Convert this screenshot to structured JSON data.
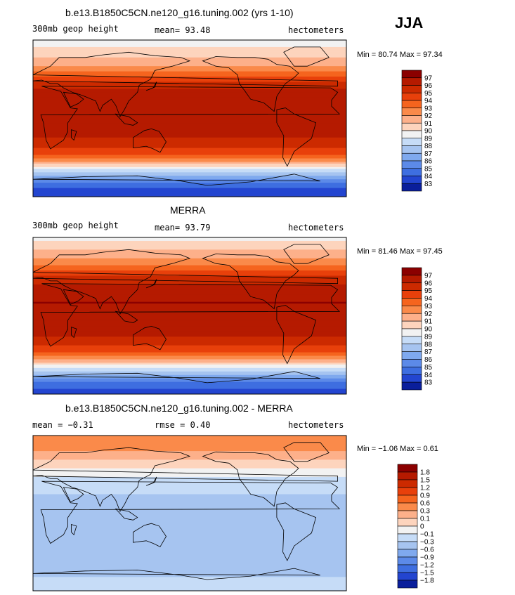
{
  "season": "JJA",
  "units": "hectometers",
  "land_outline_color": "#000000",
  "panels": [
    {
      "id": "model",
      "title": "b.e13.B1850C5CN.ne120_g16.tuning.002 (yrs 1-10)",
      "field_label": "300mb geop height",
      "stat1": "mean=  93.48",
      "stat2": "",
      "units": "hectometers",
      "minmax": "Min =  80.74 Max =  97.34"
    },
    {
      "id": "obs",
      "title": "MERRA",
      "field_label": "300mb geop height",
      "stat1": "mean=  93.79",
      "stat2": "",
      "units": "hectometers",
      "minmax": "Min =  81.46 Max =  97.45"
    },
    {
      "id": "diff",
      "title": "b.e13.B1850C5CN.ne120_g16.tuning.002 - MERRA",
      "field_label": "mean =  −0.31",
      "stat1": "rmse =   0.40",
      "stat2": "",
      "units": "hectometers",
      "minmax": "Min = −1.06 Max =   0.61"
    }
  ],
  "chart_data": [
    {
      "type": "heatmap",
      "title": "b.e13.B1850C5CN.ne120_g16.tuning.002 (yrs 1-10)",
      "variable": "300mb geop height",
      "units": "hectometers",
      "mean": 93.48,
      "min": 80.74,
      "max": 97.34,
      "lat_range": [
        -90,
        90
      ],
      "lon_range": [
        0,
        360
      ],
      "colorbar_levels": [
        "97",
        "96",
        "95",
        "94",
        "93",
        "92",
        "91",
        "90",
        "89",
        "88",
        "87",
        "86",
        "85",
        "84",
        "83"
      ],
      "colorbar_colors": [
        "#8b0000",
        "#b51a00",
        "#cc2a00",
        "#e8400b",
        "#f5641e",
        "#fa8a4a",
        "#fdb08a",
        "#fdd4bd",
        "#f2f2f2",
        "#c6dcf7",
        "#a6c4f0",
        "#7fa9ee",
        "#5c8ae8",
        "#3e6ee0",
        "#2345d0",
        "#0a1e9b"
      ],
      "zonal_profile": {
        "lat": [
          90,
          75,
          60,
          45,
          30,
          15,
          0,
          -15,
          -30,
          -45,
          -60,
          -75,
          -90
        ],
        "value": [
          89.5,
          90.5,
          92.0,
          94.5,
          96.5,
          96.8,
          96.8,
          96.5,
          95.5,
          93.5,
          88.5,
          84.5,
          83.0
        ]
      }
    },
    {
      "type": "heatmap",
      "title": "MERRA",
      "variable": "300mb geop height",
      "units": "hectometers",
      "mean": 93.79,
      "min": 81.46,
      "max": 97.45,
      "lat_range": [
        -90,
        90
      ],
      "lon_range": [
        0,
        360
      ],
      "colorbar_levels": [
        "97",
        "96",
        "95",
        "94",
        "93",
        "92",
        "91",
        "90",
        "89",
        "88",
        "87",
        "86",
        "85",
        "84",
        "83"
      ],
      "colorbar_colors": [
        "#8b0000",
        "#b51a00",
        "#cc2a00",
        "#e8400b",
        "#f5641e",
        "#fa8a4a",
        "#fdb08a",
        "#fdd4bd",
        "#f2f2f2",
        "#c6dcf7",
        "#a6c4f0",
        "#7fa9ee",
        "#5c8ae8",
        "#3e6ee0",
        "#2345d0",
        "#0a1e9b"
      ],
      "zonal_profile": {
        "lat": [
          90,
          75,
          60,
          45,
          30,
          15,
          0,
          -15,
          -30,
          -45,
          -60,
          -75,
          -90
        ],
        "value": [
          89.5,
          91.0,
          92.5,
          95.0,
          96.8,
          97.0,
          96.9,
          96.6,
          95.6,
          93.5,
          89.0,
          85.0,
          83.2
        ]
      }
    },
    {
      "type": "heatmap",
      "title": "b.e13.B1850C5CN.ne120_g16.tuning.002 - MERRA",
      "variable": "difference",
      "units": "hectometers",
      "mean": -0.31,
      "rmse": 0.4,
      "min": -1.06,
      "max": 0.61,
      "lat_range": [
        -90,
        90
      ],
      "lon_range": [
        0,
        360
      ],
      "colorbar_levels": [
        "1.8",
        "1.5",
        "1.2",
        "0.9",
        "0.6",
        "0.3",
        "0.1",
        "0",
        "−0.1",
        "−0.3",
        "−0.6",
        "−0.9",
        "−1.2",
        "−1.5",
        "−1.8"
      ],
      "colorbar_colors": [
        "#8b0000",
        "#b51a00",
        "#cc2a00",
        "#e8400b",
        "#f5641e",
        "#fa8a4a",
        "#fdb08a",
        "#fdd4bd",
        "#f2f2f2",
        "#c6dcf7",
        "#a6c4f0",
        "#7fa9ee",
        "#5c8ae8",
        "#3e6ee0",
        "#2345d0",
        "#0a1e9b"
      ],
      "zonal_profile": {
        "lat": [
          90,
          75,
          60,
          45,
          30,
          15,
          0,
          -15,
          -30,
          -45,
          -60,
          -75,
          -90
        ],
        "value": [
          0.45,
          0.35,
          0.05,
          -0.05,
          -0.25,
          -0.35,
          -0.3,
          -0.35,
          -0.45,
          -0.6,
          -0.5,
          -0.3,
          -0.2
        ]
      }
    }
  ]
}
